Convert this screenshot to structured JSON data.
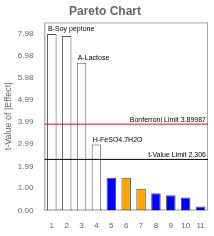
{
  "chart_data": {
    "type": "bar",
    "title": "Pareto Chart",
    "ylabel": "t-Value of |Effect|",
    "categories": [
      "1",
      "2",
      "3",
      "4",
      "5",
      "6",
      "7",
      "8",
      "9",
      "10",
      "11"
    ],
    "values": [
      7.98,
      7.88,
      6.68,
      2.98,
      1.48,
      1.48,
      0.98,
      0.78,
      0.68,
      0.58,
      0.18
    ],
    "colors": [
      "white",
      "white",
      "white",
      "white",
      "blue",
      "orange",
      "orange",
      "blue",
      "blue",
      "blue",
      "blue"
    ],
    "reference_lines": [
      {
        "value": 3.89987,
        "label": "Bonferroni Limit 3.89987",
        "color": "red"
      },
      {
        "value": 2.306,
        "label": "t-Value Limit 2.306",
        "color": "black"
      }
    ],
    "annotations": [
      {
        "text": "B-Soy peptone",
        "category": "1"
      },
      {
        "text": "A-Lactose",
        "category": "3"
      },
      {
        "text": "H-FeSO4.7H2O",
        "category": "4"
      }
    ],
    "ylim": [
      0,
      8.5
    ],
    "yticks": [
      {
        "value": 0,
        "label": "0.00"
      },
      {
        "value": 1,
        "label": "1.00"
      },
      1.99,
      2.99,
      3.99,
      4.99,
      5.98,
      6.98,
      7.98
    ],
    "grid": false
  }
}
